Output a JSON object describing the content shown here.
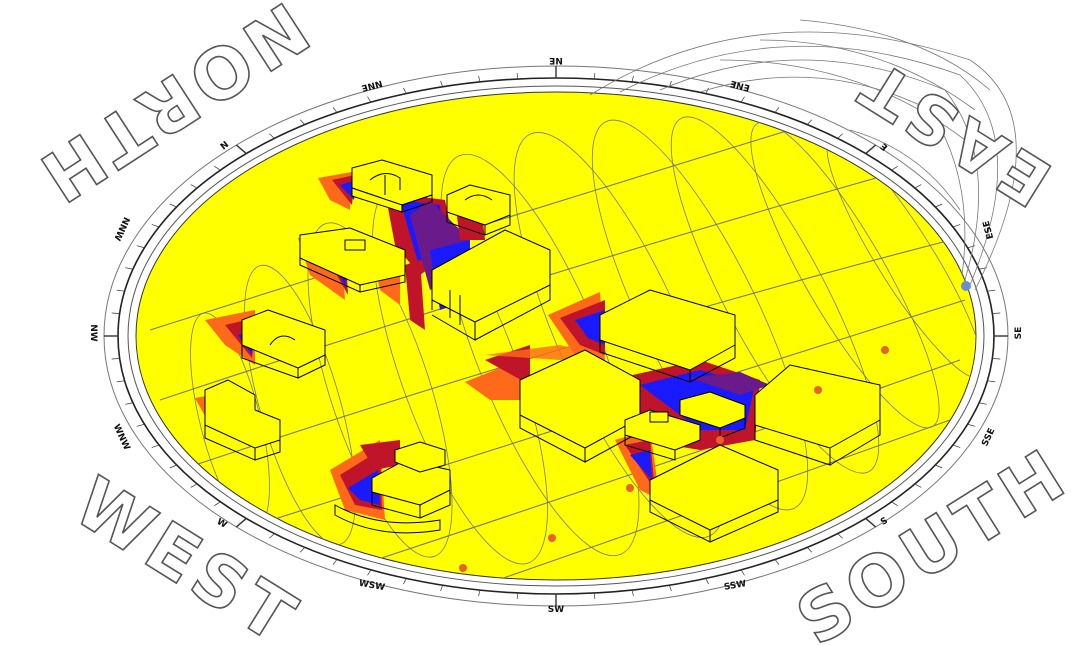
{
  "compass": {
    "north": "NORTH",
    "east": "EAST",
    "south": "SOUTH",
    "west": "WEST"
  },
  "ring_labels": {
    "top": "NE",
    "top_right_1": "ENE",
    "top_right_2": "E",
    "right_1": "ESE",
    "right_2": "SE",
    "right_3": "SSE",
    "bottom_right": "S",
    "bottom_1": "SSW",
    "bottom_2": "SW",
    "bottom_3": "WSW",
    "left_1": "W",
    "left_2": "WNW",
    "left_3": "NW",
    "left_4": "NNW",
    "top_left_1": "N",
    "top_left_2": "NNE"
  },
  "colors": {
    "ground": "#ffff00",
    "shadow_blue": "#1a1aff",
    "shadow_red": "#c0142a",
    "shadow_orange": "#ff6a1a",
    "shadow_purple": "#6a1a8a",
    "sun_marker": "#e8602a",
    "sun_current": "#6a8fd0"
  }
}
